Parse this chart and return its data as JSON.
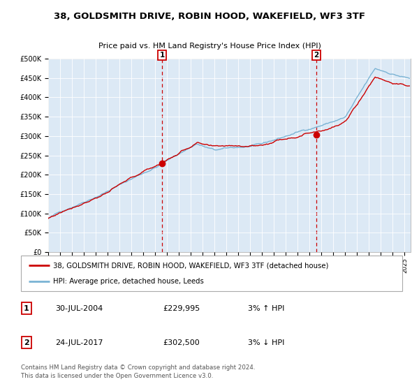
{
  "title": "38, GOLDSMITH DRIVE, ROBIN HOOD, WAKEFIELD, WF3 3TF",
  "subtitle": "Price paid vs. HM Land Registry's House Price Index (HPI)",
  "legend_line1": "38, GOLDSMITH DRIVE, ROBIN HOOD, WAKEFIELD, WF3 3TF (detached house)",
  "legend_line2": "HPI: Average price, detached house, Leeds",
  "annotation1_label": "1",
  "annotation1_date": "30-JUL-2004",
  "annotation1_price": "£229,995",
  "annotation1_hpi": "3% ↑ HPI",
  "annotation2_label": "2",
  "annotation2_date": "24-JUL-2017",
  "annotation2_price": "£302,500",
  "annotation2_hpi": "3% ↓ HPI",
  "footer": "Contains HM Land Registry data © Crown copyright and database right 2024.\nThis data is licensed under the Open Government Licence v3.0.",
  "background_color": "#dce9f5",
  "hpi_color": "#7ab3d4",
  "price_color": "#cc0000",
  "marker_color": "#cc0000",
  "dashed_line_color": "#cc0000",
  "annotation_box_color": "#cc0000",
  "ylim": [
    0,
    500000
  ],
  "yticks": [
    0,
    50000,
    100000,
    150000,
    200000,
    250000,
    300000,
    350000,
    400000,
    450000,
    500000
  ],
  "sale1_x": 2004.58,
  "sale1_y": 229995,
  "sale2_x": 2017.56,
  "sale2_y": 302500,
  "xmin": 1995.0,
  "xmax": 2025.5
}
